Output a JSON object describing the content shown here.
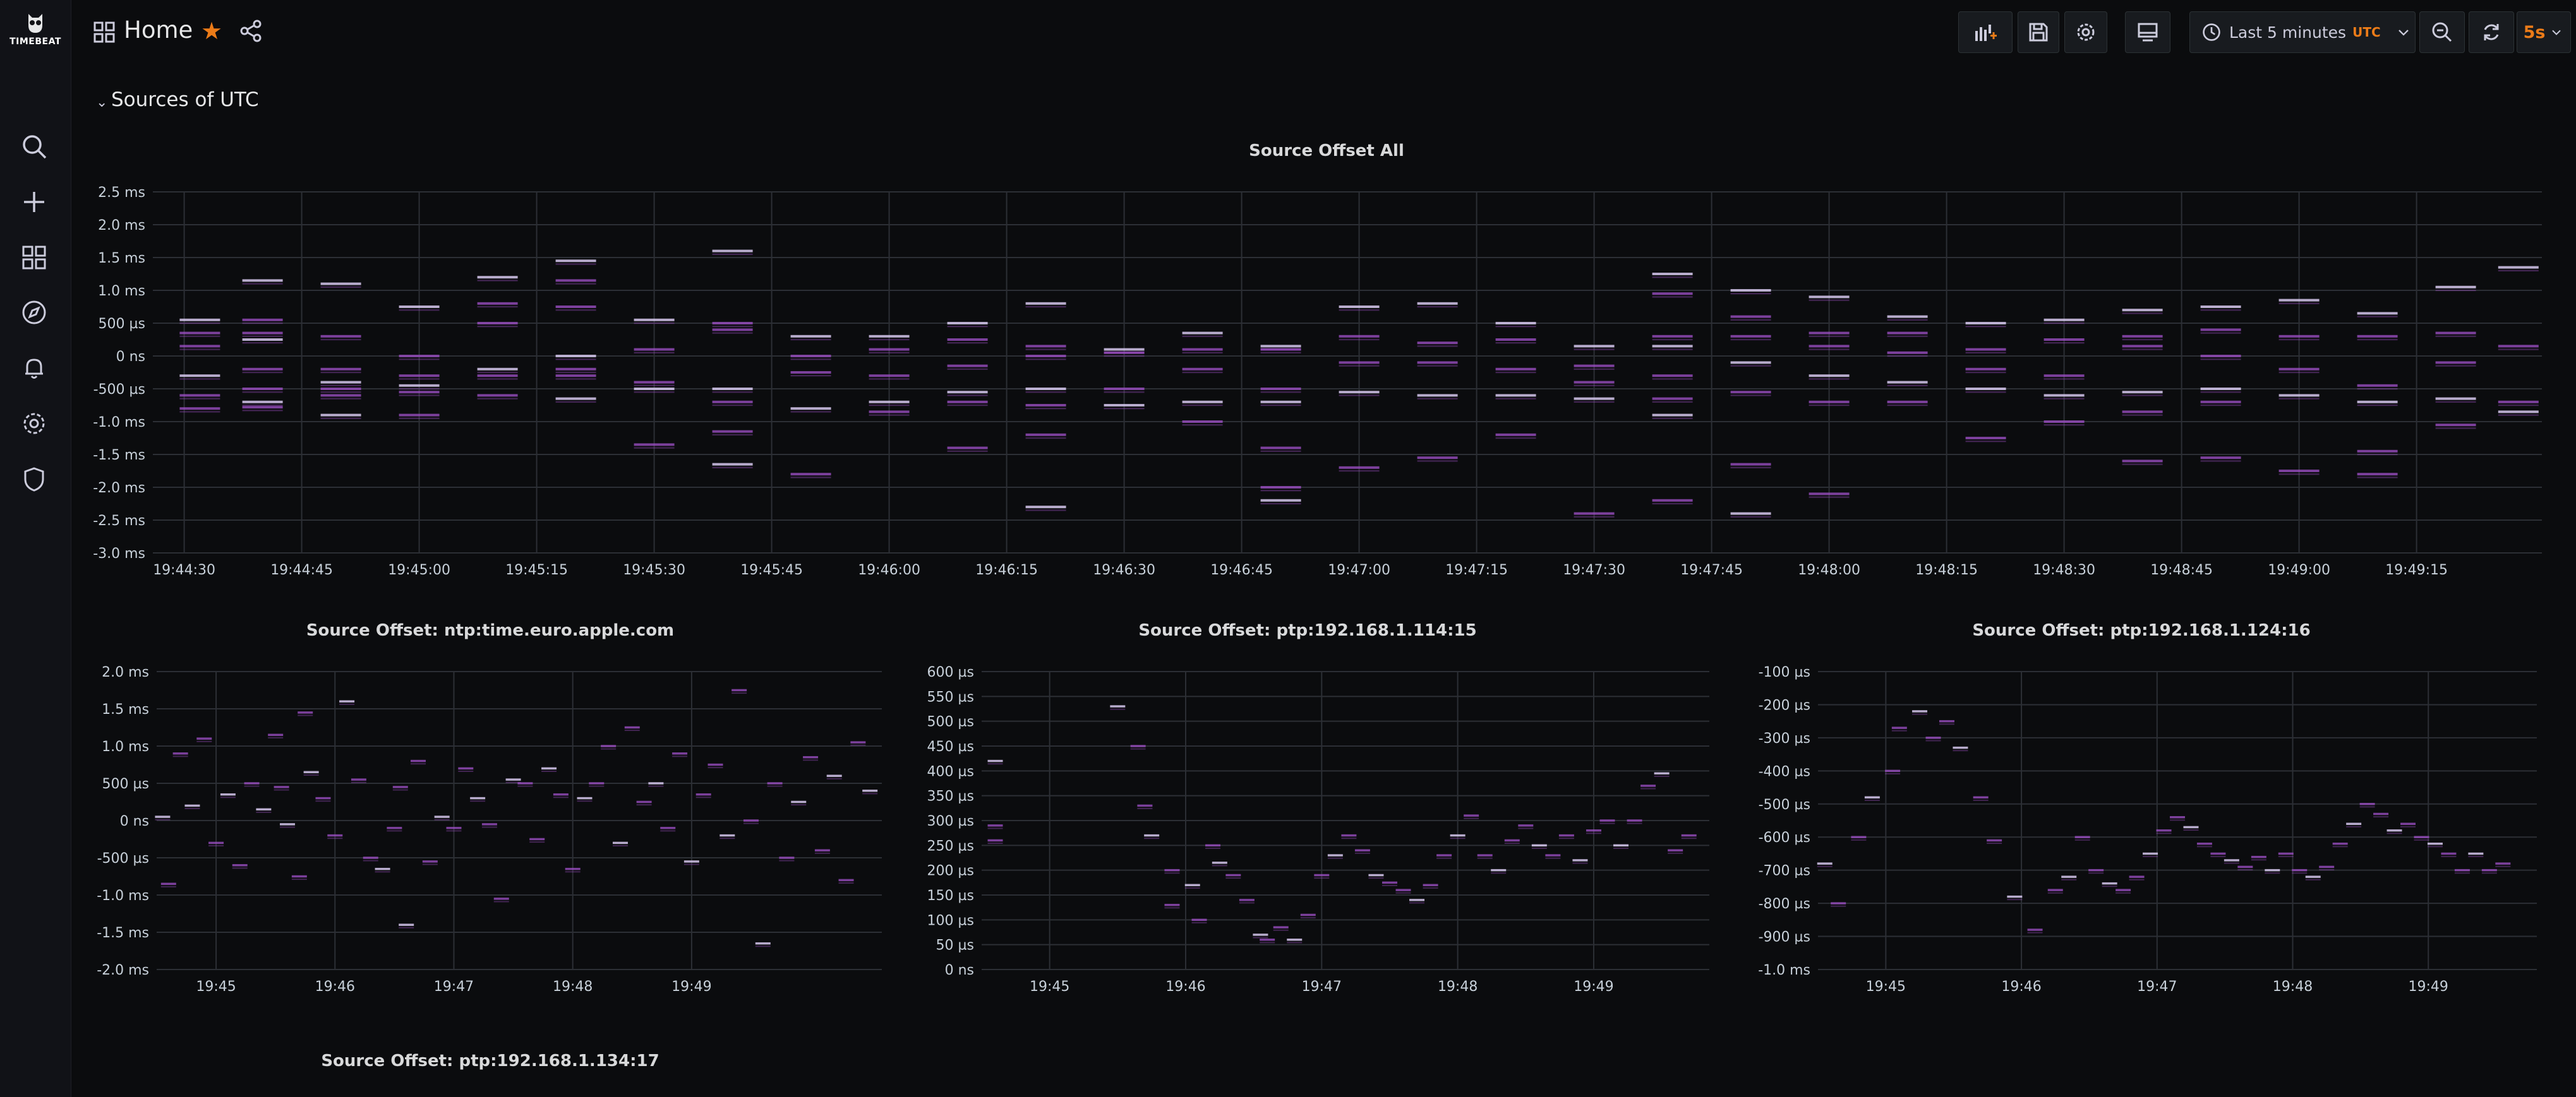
{
  "sidebar": {
    "logo_text": "TIMEBEAT",
    "items": [
      {
        "name": "search-icon"
      },
      {
        "name": "plus-icon"
      },
      {
        "name": "dashboards-icon"
      },
      {
        "name": "compass-icon"
      },
      {
        "name": "bell-icon"
      },
      {
        "name": "gear-icon"
      },
      {
        "name": "shield-icon"
      }
    ]
  },
  "header": {
    "title": "Home",
    "time_range": "Last 5 minutes",
    "timezone": "UTC",
    "refresh": "5s",
    "starred": true
  },
  "row": {
    "title": "Sources of UTC"
  },
  "colors": {
    "series": "#a352cc",
    "accent": "#eb7b18",
    "background": "#0b0c0e",
    "grid": "#2c2f35"
  },
  "chart_data": [
    {
      "type": "heatmap",
      "title": "Source Offset All",
      "x_ticks": [
        "19:44:30",
        "19:44:45",
        "19:45:00",
        "19:45:15",
        "19:45:30",
        "19:45:45",
        "19:46:00",
        "19:46:15",
        "19:46:30",
        "19:46:45",
        "19:47:00",
        "19:47:15",
        "19:47:30",
        "19:47:45",
        "19:48:00",
        "19:48:15",
        "19:48:30",
        "19:48:45",
        "19:49:00",
        "19:49:15"
      ],
      "y_ticks": [
        "2.5 ms",
        "2.0 ms",
        "1.5 ms",
        "1.0 ms",
        "500 µs",
        "0 ns",
        "-500 µs",
        "-1.0 ms",
        "-1.5 ms",
        "-2.0 ms",
        "-2.5 ms",
        "-3.0 ms"
      ],
      "ylim": [
        -3.0,
        2.5
      ],
      "y_unit": "ms",
      "columns": [
        {
          "x": 0.2,
          "y": [
            0.55,
            0.35,
            0.15,
            -0.3,
            -0.6,
            -0.8
          ]
        },
        {
          "x": 1.0,
          "y": [
            1.15,
            0.55,
            0.35,
            0.25,
            -0.2,
            -0.5,
            -0.7,
            -0.78
          ]
        },
        {
          "x": 2.0,
          "y": [
            1.1,
            0.3,
            -0.2,
            -0.4,
            -0.5,
            -0.6,
            -0.9
          ]
        },
        {
          "x": 3.0,
          "y": [
            0.75,
            0.0,
            -0.3,
            -0.45,
            -0.55,
            -0.9
          ]
        },
        {
          "x": 4.0,
          "y": [
            1.2,
            0.8,
            0.5,
            -0.2,
            -0.3,
            -0.6
          ]
        },
        {
          "x": 5.0,
          "y": [
            1.45,
            1.15,
            0.75,
            0.0,
            -0.2,
            -0.3,
            -0.65
          ]
        },
        {
          "x": 6.0,
          "y": [
            0.55,
            0.1,
            -0.4,
            -0.5,
            -1.35
          ]
        },
        {
          "x": 7.0,
          "y": [
            1.6,
            0.5,
            0.4,
            -0.5,
            -0.7,
            -1.15,
            -1.65
          ]
        },
        {
          "x": 8.0,
          "y": [
            0.3,
            0.0,
            -0.25,
            -0.8,
            -1.8
          ]
        },
        {
          "x": 9.0,
          "y": [
            0.3,
            0.1,
            -0.3,
            -0.7,
            -0.85
          ]
        },
        {
          "x": 10.0,
          "y": [
            0.5,
            0.25,
            -0.15,
            -0.55,
            -0.7,
            -1.4
          ]
        },
        {
          "x": 11.0,
          "y": [
            0.8,
            0.15,
            0.0,
            -0.5,
            -0.75,
            -1.2,
            -2.3
          ]
        },
        {
          "x": 12.0,
          "y": [
            0.1,
            0.05,
            -0.5,
            -0.75
          ]
        },
        {
          "x": 13.0,
          "y": [
            0.35,
            0.1,
            -0.2,
            -0.7,
            -1.0
          ]
        },
        {
          "x": 14.0,
          "y": [
            0.15,
            0.1,
            -0.5,
            -0.7,
            -1.4,
            -2.0,
            -2.2
          ]
        },
        {
          "x": 15.0,
          "y": [
            0.75,
            0.3,
            -0.1,
            -0.55,
            -1.7
          ]
        },
        {
          "x": 16.0,
          "y": [
            0.8,
            0.2,
            -0.1,
            -0.6,
            -1.55
          ]
        },
        {
          "x": 17.0,
          "y": [
            0.5,
            0.25,
            -0.2,
            -0.6,
            -1.2
          ]
        },
        {
          "x": 18.0,
          "y": [
            0.15,
            -0.15,
            -0.4,
            -0.65,
            -2.4
          ]
        },
        {
          "x": 19.0,
          "y": [
            1.25,
            0.95,
            0.3,
            0.15,
            -0.3,
            -0.65,
            -0.9,
            -2.2
          ]
        },
        {
          "x": 20.0,
          "y": [
            1.0,
            0.6,
            0.3,
            -0.1,
            -0.55,
            -1.65,
            -2.4
          ]
        },
        {
          "x": 21.0,
          "y": [
            0.9,
            0.35,
            0.15,
            -0.3,
            -0.7,
            -2.1
          ]
        },
        {
          "x": 22.0,
          "y": [
            0.6,
            0.35,
            0.05,
            -0.4,
            -0.7
          ]
        },
        {
          "x": 23.0,
          "y": [
            0.5,
            0.1,
            -0.2,
            -0.5,
            -1.25
          ]
        },
        {
          "x": 24.0,
          "y": [
            0.55,
            0.25,
            -0.3,
            -0.6,
            -1.0
          ]
        },
        {
          "x": 25.0,
          "y": [
            0.7,
            0.3,
            0.15,
            -0.55,
            -0.85,
            -1.6
          ]
        },
        {
          "x": 26.0,
          "y": [
            0.75,
            0.4,
            0.0,
            -0.5,
            -0.7,
            -1.55
          ]
        },
        {
          "x": 27.0,
          "y": [
            0.85,
            0.3,
            -0.2,
            -0.6,
            -1.75
          ]
        },
        {
          "x": 28.0,
          "y": [
            0.65,
            0.3,
            -0.45,
            -0.7,
            -1.45,
            -1.8
          ]
        },
        {
          "x": 29.0,
          "y": [
            1.05,
            0.35,
            -0.1,
            -0.65,
            -1.05
          ]
        },
        {
          "x": 29.8,
          "y": [
            1.35,
            0.15,
            -0.7,
            -0.85
          ]
        }
      ]
    },
    {
      "type": "heatmap",
      "title": "Source Offset: ntp:time.euro.apple.com",
      "x_ticks": [
        "19:45",
        "19:46",
        "19:47",
        "19:48",
        "19:49"
      ],
      "y_ticks": [
        "2.0 ms",
        "1.5 ms",
        "1.0 ms",
        "500 µs",
        "0 ns",
        "-500 µs",
        "-1.0 ms",
        "-1.5 ms",
        "-2.0 ms"
      ],
      "ylim": [
        -2.0,
        2.0
      ],
      "y_unit": "ms",
      "points": [
        [
          0.05,
          0.05
        ],
        [
          0.1,
          -0.85
        ],
        [
          0.2,
          0.9
        ],
        [
          0.3,
          0.2
        ],
        [
          0.4,
          1.1
        ],
        [
          0.5,
          -0.3
        ],
        [
          0.6,
          0.35
        ],
        [
          0.7,
          -0.6
        ],
        [
          0.8,
          0.5
        ],
        [
          0.9,
          0.15
        ],
        [
          1.0,
          1.15
        ],
        [
          1.05,
          0.45
        ],
        [
          1.1,
          -0.05
        ],
        [
          1.2,
          -0.75
        ],
        [
          1.25,
          1.45
        ],
        [
          1.3,
          0.65
        ],
        [
          1.4,
          0.3
        ],
        [
          1.5,
          -0.2
        ],
        [
          1.6,
          1.6
        ],
        [
          1.7,
          0.55
        ],
        [
          1.8,
          -0.5
        ],
        [
          1.9,
          -0.65
        ],
        [
          2.0,
          -0.1
        ],
        [
          2.05,
          0.45
        ],
        [
          2.1,
          -1.4
        ],
        [
          2.2,
          0.8
        ],
        [
          2.3,
          -0.55
        ],
        [
          2.4,
          0.05
        ],
        [
          2.5,
          -0.1
        ],
        [
          2.6,
          0.7
        ],
        [
          2.7,
          0.3
        ],
        [
          2.8,
          -0.05
        ],
        [
          2.9,
          -1.05
        ],
        [
          3.0,
          0.55
        ],
        [
          3.1,
          0.5
        ],
        [
          3.2,
          -0.25
        ],
        [
          3.3,
          0.7
        ],
        [
          3.4,
          0.35
        ],
        [
          3.5,
          -0.65
        ],
        [
          3.6,
          0.3
        ],
        [
          3.7,
          0.5
        ],
        [
          3.8,
          1.0
        ],
        [
          3.9,
          -0.3
        ],
        [
          4.0,
          1.25
        ],
        [
          4.1,
          0.25
        ],
        [
          4.2,
          0.5
        ],
        [
          4.3,
          -0.1
        ],
        [
          4.4,
          0.9
        ],
        [
          4.5,
          -0.55
        ],
        [
          4.6,
          0.35
        ],
        [
          4.7,
          0.75
        ],
        [
          4.8,
          -0.2
        ],
        [
          4.9,
          1.75
        ],
        [
          5.0,
          0.0
        ],
        [
          5.1,
          -1.65
        ],
        [
          5.2,
          0.5
        ],
        [
          5.3,
          -0.5
        ],
        [
          5.4,
          0.25
        ],
        [
          5.5,
          0.85
        ],
        [
          5.6,
          -0.4
        ],
        [
          5.7,
          0.6
        ],
        [
          5.8,
          -0.8
        ],
        [
          5.9,
          1.05
        ],
        [
          6.0,
          0.4
        ]
      ]
    },
    {
      "type": "heatmap",
      "title": "Source Offset: ptp:192.168.1.114:15",
      "x_ticks": [
        "19:45",
        "19:46",
        "19:47",
        "19:48",
        "19:49"
      ],
      "y_ticks": [
        "600 µs",
        "550 µs",
        "500 µs",
        "450 µs",
        "400 µs",
        "350 µs",
        "300 µs",
        "250 µs",
        "200 µs",
        "150 µs",
        "100 µs",
        "50 µs",
        "0 ns"
      ],
      "ylim": [
        0,
        600
      ],
      "y_unit": "µs",
      "points": [
        [
          0.1,
          420
        ],
        [
          0.1,
          290
        ],
        [
          0.1,
          260
        ],
        [
          1.0,
          530
        ],
        [
          1.15,
          450
        ],
        [
          1.2,
          330
        ],
        [
          1.25,
          270
        ],
        [
          1.4,
          200
        ],
        [
          1.4,
          130
        ],
        [
          1.55,
          170
        ],
        [
          1.6,
          100
        ],
        [
          1.7,
          250
        ],
        [
          1.75,
          215
        ],
        [
          1.85,
          190
        ],
        [
          1.95,
          140
        ],
        [
          2.05,
          70
        ],
        [
          2.1,
          60
        ],
        [
          2.2,
          85
        ],
        [
          2.3,
          60
        ],
        [
          2.4,
          110
        ],
        [
          2.5,
          190
        ],
        [
          2.6,
          230
        ],
        [
          2.7,
          270
        ],
        [
          2.8,
          240
        ],
        [
          2.9,
          190
        ],
        [
          3.0,
          175
        ],
        [
          3.1,
          160
        ],
        [
          3.2,
          140
        ],
        [
          3.3,
          170
        ],
        [
          3.4,
          230
        ],
        [
          3.5,
          270
        ],
        [
          3.6,
          310
        ],
        [
          3.7,
          230
        ],
        [
          3.8,
          200
        ],
        [
          3.9,
          260
        ],
        [
          4.0,
          290
        ],
        [
          4.1,
          250
        ],
        [
          4.2,
          230
        ],
        [
          4.3,
          270
        ],
        [
          4.4,
          220
        ],
        [
          4.5,
          280
        ],
        [
          4.6,
          300
        ],
        [
          4.7,
          250
        ],
        [
          4.8,
          300
        ],
        [
          4.9,
          370
        ],
        [
          5.0,
          395
        ],
        [
          5.1,
          240
        ],
        [
          5.2,
          270
        ]
      ]
    },
    {
      "type": "heatmap",
      "title": "Source Offset: ptp:192.168.1.124:16",
      "x_ticks": [
        "19:45",
        "19:46",
        "19:47",
        "19:48",
        "19:49"
      ],
      "y_ticks": [
        "-100 µs",
        "-200 µs",
        "-300 µs",
        "-400 µs",
        "-500 µs",
        "-600 µs",
        "-700 µs",
        "-800 µs",
        "-900 µs",
        "-1.0 ms"
      ],
      "ylim": [
        -1000,
        -100
      ],
      "y_unit": "µs",
      "points": [
        [
          0.05,
          -680
        ],
        [
          0.15,
          -800
        ],
        [
          0.3,
          -600
        ],
        [
          0.4,
          -480
        ],
        [
          0.55,
          -400
        ],
        [
          0.6,
          -270
        ],
        [
          0.75,
          -220
        ],
        [
          0.85,
          -300
        ],
        [
          0.95,
          -250
        ],
        [
          1.05,
          -330
        ],
        [
          1.2,
          -480
        ],
        [
          1.3,
          -610
        ],
        [
          1.45,
          -780
        ],
        [
          1.6,
          -880
        ],
        [
          1.75,
          -760
        ],
        [
          1.85,
          -720
        ],
        [
          1.95,
          -600
        ],
        [
          2.05,
          -700
        ],
        [
          2.15,
          -740
        ],
        [
          2.25,
          -760
        ],
        [
          2.35,
          -720
        ],
        [
          2.45,
          -650
        ],
        [
          2.55,
          -580
        ],
        [
          2.65,
          -540
        ],
        [
          2.75,
          -570
        ],
        [
          2.85,
          -620
        ],
        [
          2.95,
          -650
        ],
        [
          3.05,
          -670
        ],
        [
          3.15,
          -690
        ],
        [
          3.25,
          -660
        ],
        [
          3.35,
          -700
        ],
        [
          3.45,
          -650
        ],
        [
          3.55,
          -700
        ],
        [
          3.65,
          -720
        ],
        [
          3.75,
          -690
        ],
        [
          3.85,
          -620
        ],
        [
          3.95,
          -560
        ],
        [
          4.05,
          -500
        ],
        [
          4.15,
          -530
        ],
        [
          4.25,
          -580
        ],
        [
          4.35,
          -560
        ],
        [
          4.45,
          -600
        ],
        [
          4.55,
          -620
        ],
        [
          4.65,
          -650
        ],
        [
          4.75,
          -700
        ],
        [
          4.85,
          -650
        ],
        [
          4.95,
          -700
        ],
        [
          5.05,
          -680
        ]
      ]
    }
  ],
  "panels_below": [
    {
      "title": "Source Offset: ptp:192.168.1.134:17"
    }
  ]
}
